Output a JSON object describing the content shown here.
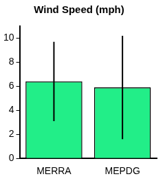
{
  "chart_data": {
    "type": "bar",
    "title": "Wind Speed (mph)",
    "categories": [
      "MERRA",
      "MEPDG"
    ],
    "values": [
      6.4,
      5.9
    ],
    "error": [
      3.3,
      4.3
    ],
    "color": "#22ee88",
    "ylim": [
      0,
      11
    ],
    "yticks": [
      0,
      2,
      4,
      6,
      8,
      10
    ],
    "grid": false
  }
}
